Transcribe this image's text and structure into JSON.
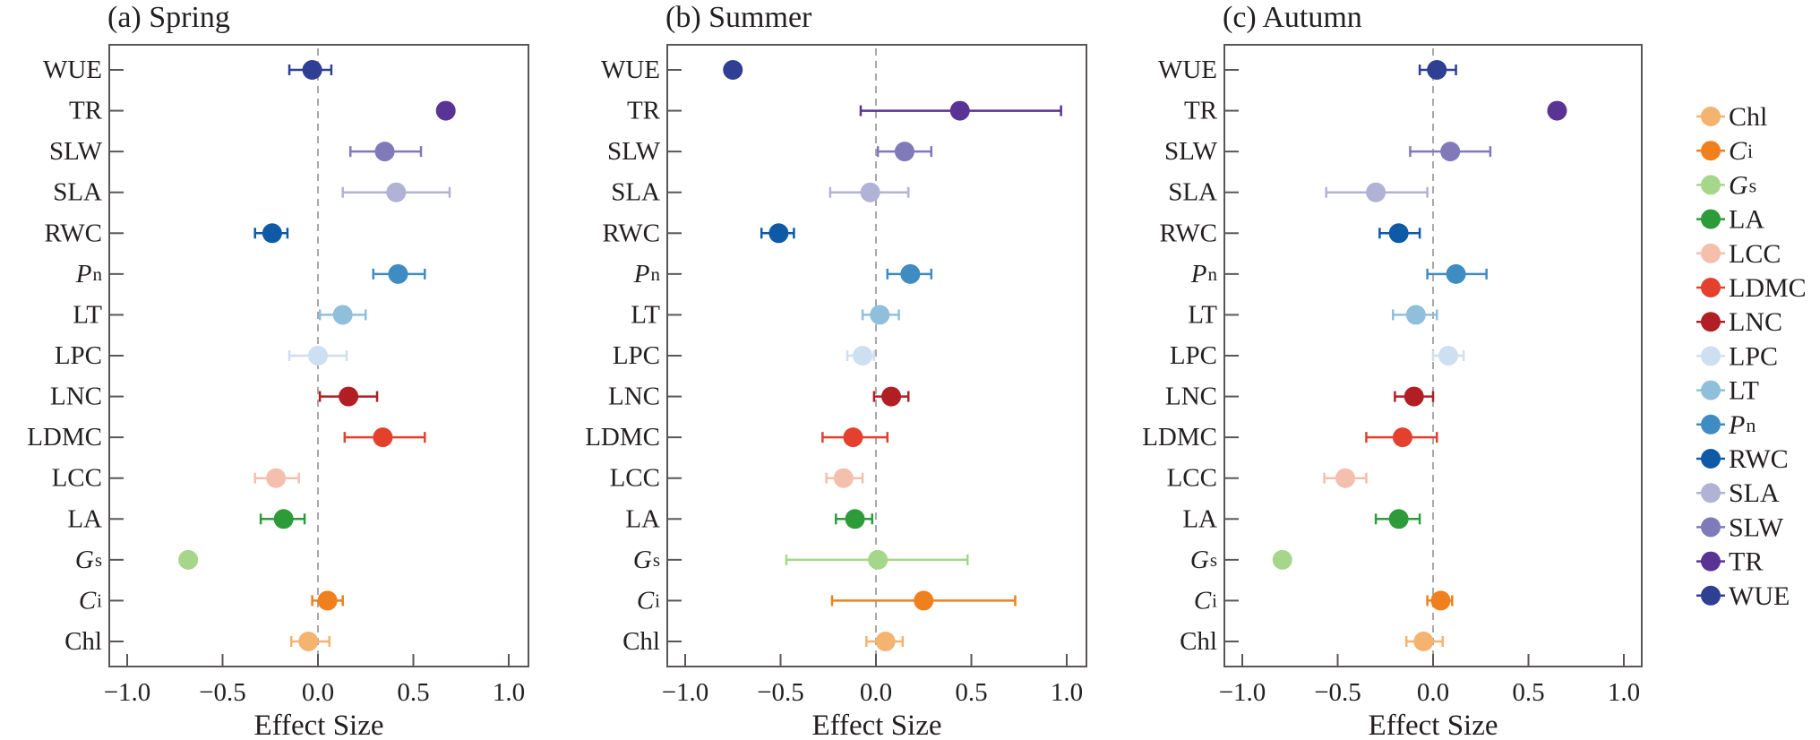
{
  "chart_data": [
    {
      "type": "scatter",
      "subtype": "forest-plot",
      "title": "(a) Spring",
      "xlabel": "Effect Size",
      "ylabel": "",
      "xlim": [
        -1.1,
        1.1
      ],
      "xticks": [
        -1.0,
        -0.5,
        0.0,
        0.5,
        1.0
      ],
      "xtick_labels": [
        "−1.0",
        "−0.5",
        "0.0",
        "0.5",
        "1.0"
      ],
      "reference_line": 0.0,
      "grid": false,
      "categories": [
        "WUE",
        "TR",
        "SLW",
        "SLA",
        "RWC",
        "Pn",
        "LT",
        "LPC",
        "LNC",
        "LDMC",
        "LCC",
        "LA",
        "Gs",
        "Ci",
        "Chl"
      ],
      "points": [
        {
          "trait": "WUE",
          "value": -0.03,
          "ci_low": -0.15,
          "ci_high": 0.07
        },
        {
          "trait": "TR",
          "value": 0.67,
          "ci_low": null,
          "ci_high": null
        },
        {
          "trait": "SLW",
          "value": 0.35,
          "ci_low": 0.17,
          "ci_high": 0.54
        },
        {
          "trait": "SLA",
          "value": 0.41,
          "ci_low": 0.13,
          "ci_high": 0.69
        },
        {
          "trait": "RWC",
          "value": -0.24,
          "ci_low": -0.33,
          "ci_high": -0.16
        },
        {
          "trait": "Pn",
          "value": 0.42,
          "ci_low": 0.29,
          "ci_high": 0.56
        },
        {
          "trait": "LT",
          "value": 0.13,
          "ci_low": 0.01,
          "ci_high": 0.25
        },
        {
          "trait": "LPC",
          "value": 0.0,
          "ci_low": -0.15,
          "ci_high": 0.15
        },
        {
          "trait": "LNC",
          "value": 0.16,
          "ci_low": 0.01,
          "ci_high": 0.31
        },
        {
          "trait": "LDMC",
          "value": 0.34,
          "ci_low": 0.14,
          "ci_high": 0.56
        },
        {
          "trait": "LCC",
          "value": -0.22,
          "ci_low": -0.33,
          "ci_high": -0.1
        },
        {
          "trait": "LA",
          "value": -0.18,
          "ci_low": -0.3,
          "ci_high": -0.07
        },
        {
          "trait": "Gs",
          "value": -0.68,
          "ci_low": null,
          "ci_high": null
        },
        {
          "trait": "Ci",
          "value": 0.05,
          "ci_low": -0.03,
          "ci_high": 0.13
        },
        {
          "trait": "Chl",
          "value": -0.05,
          "ci_low": -0.14,
          "ci_high": 0.06
        }
      ]
    },
    {
      "type": "scatter",
      "subtype": "forest-plot",
      "title": "(b) Summer",
      "xlabel": "Effect Size",
      "ylabel": "",
      "xlim": [
        -1.1,
        1.1
      ],
      "xticks": [
        -1.0,
        -0.5,
        0.0,
        0.5,
        1.0
      ],
      "xtick_labels": [
        "−1.0",
        "−0.5",
        "0.0",
        "0.5",
        "1.0"
      ],
      "reference_line": 0.0,
      "grid": false,
      "categories": [
        "WUE",
        "TR",
        "SLW",
        "SLA",
        "RWC",
        "Pn",
        "LT",
        "LPC",
        "LNC",
        "LDMC",
        "LCC",
        "LA",
        "Gs",
        "Ci",
        "Chl"
      ],
      "points": [
        {
          "trait": "WUE",
          "value": -0.75,
          "ci_low": null,
          "ci_high": null
        },
        {
          "trait": "TR",
          "value": 0.44,
          "ci_low": -0.08,
          "ci_high": 0.97
        },
        {
          "trait": "SLW",
          "value": 0.15,
          "ci_low": 0.01,
          "ci_high": 0.29
        },
        {
          "trait": "SLA",
          "value": -0.03,
          "ci_low": -0.24,
          "ci_high": 0.17
        },
        {
          "trait": "RWC",
          "value": -0.51,
          "ci_low": -0.6,
          "ci_high": -0.43
        },
        {
          "trait": "Pn",
          "value": 0.18,
          "ci_low": 0.06,
          "ci_high": 0.29
        },
        {
          "trait": "LT",
          "value": 0.02,
          "ci_low": -0.07,
          "ci_high": 0.12
        },
        {
          "trait": "LPC",
          "value": -0.07,
          "ci_low": -0.15,
          "ci_high": -0.01
        },
        {
          "trait": "LNC",
          "value": 0.08,
          "ci_low": -0.01,
          "ci_high": 0.17
        },
        {
          "trait": "LDMC",
          "value": -0.12,
          "ci_low": -0.28,
          "ci_high": 0.06
        },
        {
          "trait": "LCC",
          "value": -0.17,
          "ci_low": -0.26,
          "ci_high": -0.07
        },
        {
          "trait": "LA",
          "value": -0.11,
          "ci_low": -0.21,
          "ci_high": -0.02
        },
        {
          "trait": "Gs",
          "value": 0.01,
          "ci_low": -0.47,
          "ci_high": 0.48
        },
        {
          "trait": "Ci",
          "value": 0.25,
          "ci_low": -0.23,
          "ci_high": 0.73
        },
        {
          "trait": "Chl",
          "value": 0.05,
          "ci_low": -0.05,
          "ci_high": 0.14
        }
      ]
    },
    {
      "type": "scatter",
      "subtype": "forest-plot",
      "title": "(c) Autumn",
      "xlabel": "Effect Size",
      "ylabel": "",
      "xlim": [
        -1.1,
        1.1
      ],
      "xticks": [
        -1.0,
        -0.5,
        0.0,
        0.5,
        1.0
      ],
      "xtick_labels": [
        "−1.0",
        "−0.5",
        "0.0",
        "0.5",
        "1.0"
      ],
      "reference_line": 0.0,
      "grid": false,
      "categories": [
        "WUE",
        "TR",
        "SLW",
        "SLA",
        "RWC",
        "Pn",
        "LT",
        "LPC",
        "LNC",
        "LDMC",
        "LCC",
        "LA",
        "Gs",
        "Ci",
        "Chl"
      ],
      "points": [
        {
          "trait": "WUE",
          "value": 0.02,
          "ci_low": -0.07,
          "ci_high": 0.12
        },
        {
          "trait": "TR",
          "value": 0.65,
          "ci_low": null,
          "ci_high": null
        },
        {
          "trait": "SLW",
          "value": 0.09,
          "ci_low": -0.12,
          "ci_high": 0.3
        },
        {
          "trait": "SLA",
          "value": -0.3,
          "ci_low": -0.56,
          "ci_high": -0.03
        },
        {
          "trait": "RWC",
          "value": -0.18,
          "ci_low": -0.28,
          "ci_high": -0.07
        },
        {
          "trait": "Pn",
          "value": 0.12,
          "ci_low": -0.03,
          "ci_high": 0.28
        },
        {
          "trait": "LT",
          "value": -0.09,
          "ci_low": -0.21,
          "ci_high": 0.02
        },
        {
          "trait": "LPC",
          "value": 0.08,
          "ci_low": 0.0,
          "ci_high": 0.16
        },
        {
          "trait": "LNC",
          "value": -0.1,
          "ci_low": -0.2,
          "ci_high": 0.0
        },
        {
          "trait": "LDMC",
          "value": -0.16,
          "ci_low": -0.35,
          "ci_high": 0.02
        },
        {
          "trait": "LCC",
          "value": -0.46,
          "ci_low": -0.57,
          "ci_high": -0.35
        },
        {
          "trait": "LA",
          "value": -0.18,
          "ci_low": -0.3,
          "ci_high": -0.07
        },
        {
          "trait": "Gs",
          "value": -0.79,
          "ci_low": null,
          "ci_high": null
        },
        {
          "trait": "Ci",
          "value": 0.04,
          "ci_low": -0.03,
          "ci_high": 0.1
        },
        {
          "trait": "Chl",
          "value": -0.05,
          "ci_low": -0.14,
          "ci_high": 0.05
        }
      ]
    }
  ],
  "traits": {
    "WUE": {
      "main": "WUE",
      "sub": "",
      "italic": false
    },
    "TR": {
      "main": "TR",
      "sub": "",
      "italic": false
    },
    "SLW": {
      "main": "SLW",
      "sub": "",
      "italic": false
    },
    "SLA": {
      "main": "SLA",
      "sub": "",
      "italic": false
    },
    "RWC": {
      "main": "RWC",
      "sub": "",
      "italic": false
    },
    "Pn": {
      "main": "P",
      "sub": "n",
      "italic": true
    },
    "LT": {
      "main": "LT",
      "sub": "",
      "italic": false
    },
    "LPC": {
      "main": "LPC",
      "sub": "",
      "italic": false
    },
    "LNC": {
      "main": "LNC",
      "sub": "",
      "italic": false
    },
    "LDMC": {
      "main": "LDMC",
      "sub": "",
      "italic": false
    },
    "LCC": {
      "main": "LCC",
      "sub": "",
      "italic": false
    },
    "LA": {
      "main": "LA",
      "sub": "",
      "italic": false
    },
    "Gs": {
      "main": "G",
      "sub": "s",
      "italic": true
    },
    "Ci": {
      "main": "C",
      "sub": "i",
      "italic": true
    },
    "Chl": {
      "main": "Chl",
      "sub": "",
      "italic": false
    }
  },
  "legend": {
    "placement": "right",
    "entries": [
      "Chl",
      "Ci",
      "Gs",
      "LA",
      "LCC",
      "LDMC",
      "LNC",
      "LPC",
      "LT",
      "Pn",
      "RWC",
      "SLA",
      "SLW",
      "TR",
      "WUE"
    ]
  },
  "colors": {
    "Chl": "#f4b36f",
    "Ci": "#f07f1d",
    "Gs": "#a6d68a",
    "LA": "#2e9b3a",
    "LCC": "#f5bfae",
    "LDMC": "#e4402e",
    "LNC": "#b11e24",
    "LPC": "#cddff0",
    "LT": "#90bfdb",
    "Pn": "#3e8cc2",
    "RWC": "#0e5aa6",
    "SLA": "#b2b1d6",
    "SLW": "#8079ba",
    "TR": "#5a3494",
    "WUE": "#2e3f94",
    "axis": "#5a5656",
    "reference_line": "#a9a9a9",
    "text": "#231f20"
  }
}
